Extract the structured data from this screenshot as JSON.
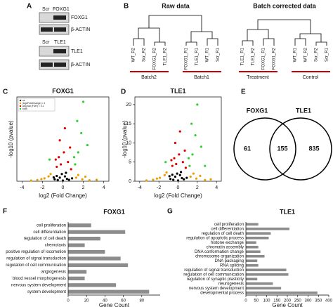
{
  "panel_labels": [
    "A",
    "B",
    "C",
    "D",
    "E",
    "F",
    "G"
  ],
  "blot": {
    "top": {
      "columns": [
        "Scr",
        "FOXG1"
      ],
      "rows": [
        "FOXG1",
        "β-ACTIN"
      ]
    },
    "bottom": {
      "columns": [
        "Scr",
        "TLE1"
      ],
      "rows": [
        "TLE1",
        "β-ACTIN"
      ]
    }
  },
  "dendrogram": {
    "raw": {
      "title": "Raw data",
      "leaves": [
        "WT_R2",
        "Scr_R2",
        "FOXG1_R2",
        "TLE1_R2",
        "FOXG1_R1",
        "TLE1_R1",
        "WT_R1",
        "Scr_R1"
      ],
      "groups": [
        "Batch2",
        "Batch1"
      ]
    },
    "corrected": {
      "title": "Batch corrected data",
      "leaves": [
        "TLE1_R1",
        "TLE1_R2",
        "FOXG1_R1",
        "FOXG1_R2",
        "WT_R1",
        "WT_R2",
        "Scr_R2",
        "Scr_R1"
      ],
      "groups": [
        "Treatment",
        "Control"
      ]
    }
  },
  "venn": {
    "sets": [
      "FOXG1",
      "TLE1"
    ],
    "counts": [
      "61",
      "155",
      "835"
    ]
  },
  "chart_data": [
    {
      "type": "scatter",
      "title": "FOXG1",
      "xlabel": "log2 (Fold Change)",
      "ylabel": "-log10 (pvalue)",
      "xlim": [
        -4.5,
        4.5
      ],
      "xticks": [
        -4,
        -2,
        0,
        2,
        4
      ],
      "ylim": [
        0,
        35
      ],
      "legend": true,
      "series": [
        {
          "name": "ns",
          "color": "#000000",
          "x": [
            -0.5,
            -0.3,
            0,
            0.2,
            0.4,
            -0.8,
            0.6,
            -0.1,
            0.3,
            -0.6,
            0.9,
            -0.9
          ],
          "values": [
            0.5,
            1.5,
            0.3,
            2,
            1,
            0.8,
            0.6,
            3,
            3.5,
            2.2,
            1.2,
            1.6
          ]
        },
        {
          "name": "|log2FoldChange| > 1",
          "color": "#e8a000",
          "x": [
            -2.5,
            -1.8,
            -1.4,
            1.3,
            1.9,
            2.6,
            -3.1,
            3.3,
            -1.2,
            1.5,
            -2.1,
            2.2
          ],
          "values": [
            0.5,
            1.2,
            2,
            1.5,
            0.8,
            0.4,
            0.3,
            0.6,
            3,
            2.6,
            0.9,
            1.9
          ]
        },
        {
          "name": "adj.pval (FDR) < 0.1",
          "color": "#e00000",
          "x": [
            -0.6,
            -0.4,
            0.5,
            0.7,
            -0.3,
            0.2,
            0.8,
            -0.7,
            0.1,
            -0.2
          ],
          "values": [
            6,
            10,
            8,
            14,
            17,
            22,
            5,
            9,
            12,
            7
          ]
        },
        {
          "name": "both",
          "color": "#33cc33",
          "x": [
            1.2,
            1.5,
            2,
            1.8,
            -1.3,
            2.4,
            1.4,
            1.1
          ],
          "values": [
            7,
            12,
            33,
            20,
            9,
            15,
            25,
            10
          ]
        }
      ]
    },
    {
      "type": "scatter",
      "title": "TLE1",
      "xlabel": "log2 (Fold Change)",
      "ylabel": "-log10 (pvalue)",
      "xlim": [
        -4.5,
        4.5
      ],
      "xticks": [
        -4,
        -2,
        0,
        2,
        4
      ],
      "ylim": [
        0,
        22
      ],
      "yticks": [
        0,
        5,
        10,
        15,
        20
      ],
      "legend": false,
      "series": [
        {
          "name": "ns",
          "color": "#000000",
          "x": [
            -0.5,
            -0.3,
            0,
            0.2,
            0.4,
            -0.8,
            0.6,
            -0.1,
            0.3,
            -0.6,
            0.9,
            -0.9
          ],
          "values": [
            0.4,
            1.2,
            0.2,
            1.6,
            0.8,
            0.6,
            0.5,
            2,
            2.4,
            1.7,
            0.9,
            1.3
          ]
        },
        {
          "name": "|log2FoldChange| > 1",
          "color": "#e8a000",
          "x": [
            -2.6,
            -1.9,
            -1.4,
            1.3,
            1.9,
            2.8,
            -3.3,
            3.4,
            -1.2,
            1.6,
            -2.2,
            2.3
          ],
          "values": [
            0.4,
            0.9,
            1.6,
            1.2,
            0.7,
            0.3,
            0.2,
            0.5,
            2.3,
            2,
            0.7,
            1.4
          ]
        },
        {
          "name": "adj.pval (FDR) < 0.1",
          "color": "#e00000",
          "x": [
            -0.6,
            -0.4,
            0.5,
            0.7,
            -0.3,
            0.2,
            0.8,
            -0.7,
            0.1,
            -0.2
          ],
          "values": [
            4,
            6,
            5,
            8,
            10,
            13,
            3.5,
            5.5,
            7,
            4.5
          ]
        },
        {
          "name": "both",
          "color": "#33cc33",
          "x": [
            1.2,
            1.5,
            2,
            1.8,
            -1.3,
            2.4,
            1.4,
            1.1,
            2.8
          ],
          "values": [
            4,
            7,
            20,
            12,
            5,
            9,
            15,
            6,
            4
          ]
        }
      ]
    },
    {
      "type": "bar",
      "orientation": "horizontal",
      "title": "FOXG1",
      "xlabel": "Gene Count",
      "color": "#8c8c8c",
      "categories": [
        "cell proliferation",
        "cell differentiation",
        "regulation of cell death",
        "chemotaxis",
        "positive regulation of locomotion",
        "regulation of signal transduction",
        "regulation of cell communication",
        "angiogenesis",
        "blood vessel morphogenesis",
        "nervous system development",
        "system development"
      ],
      "values": [
        25,
        62,
        35,
        18,
        40,
        57,
        65,
        20,
        18,
        52,
        88
      ],
      "xlim": [
        0,
        100
      ],
      "xticks": [
        0,
        20,
        40,
        60,
        80
      ]
    },
    {
      "type": "bar",
      "orientation": "horizontal",
      "title": "TLE1",
      "xlabel": "Gene Count",
      "color": "#8c8c8c",
      "categories": [
        "cell proliferation",
        "cell differentiation",
        "regulation of cell death",
        "regulation of apoptotic process",
        "histone exchange",
        "chromatin assembly",
        "DNA conformation change",
        "chromosome organization",
        "DNA packaging",
        "RNA splicing",
        "regulation of signal transduction",
        "regulation of cell communication",
        "regulation of synaptic plasticity",
        "neurogenesis",
        "nervous system development",
        "developmental process"
      ],
      "values": [
        60,
        210,
        120,
        110,
        50,
        60,
        70,
        90,
        55,
        60,
        195,
        205,
        55,
        130,
        170,
        345
      ],
      "xlim": [
        0,
        400
      ],
      "xticks": [
        0,
        50,
        100,
        150,
        200,
        250,
        300,
        350,
        400
      ]
    }
  ]
}
